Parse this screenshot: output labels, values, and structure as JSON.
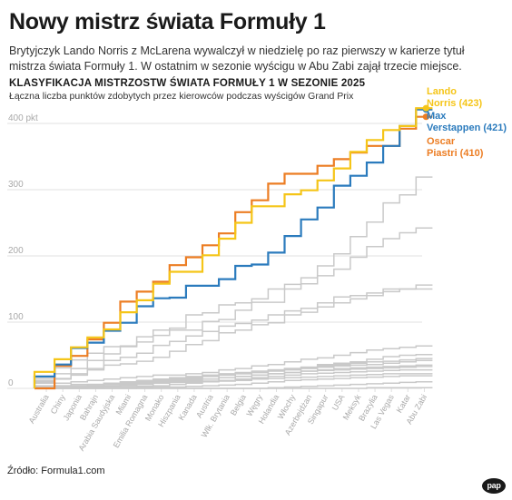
{
  "header": {
    "title": "Nowy mistrz świata Formuły 1",
    "lead": "Brytyjczyk Lando Norris z McLarena wywalczył w niedzielę po raz pierwszy w karierze tytuł mistrza świata Formuły 1. W ostatnim w sezonie wyścigu w Abu Zabi zajął trzecie miejsce."
  },
  "footer": {
    "source": "Źródło: Formula1.com",
    "logo": "pap"
  },
  "colors": {
    "norris": "#f5c518",
    "verstappen": "#2b7bbd",
    "piastri": "#ec7d23",
    "others": "#c9c9c9",
    "grid": "#d7d7d7",
    "axis_text": "#a9a9a9"
  },
  "chart_data": {
    "type": "line",
    "step": true,
    "title": "KLASYFIKACJA MISTRZOSTW ŚWIATA FORMUŁY 1 W SEZONIE 2025",
    "subtitle": "Łączna liczba punktów zdobytych przez kierowców podczas wyścigów Grand Prix",
    "xlabel": "",
    "ylabel": "",
    "ylim": [
      0,
      400
    ],
    "yticks": [
      0,
      100,
      200,
      300,
      400
    ],
    "ytick_labels": [
      "0",
      "100",
      "200",
      "300",
      "400 pkt"
    ],
    "grid": true,
    "legend": "end-labels right",
    "categories": [
      "Australia",
      "Chiny",
      "Japonia",
      "Bahrajn",
      "Arabia Saudyjska",
      "Miami",
      "Emilia Romagna",
      "Monako",
      "Hiszpania",
      "Kanada",
      "Austria",
      "Wlk. Brytania",
      "Belgia",
      "Węgry",
      "Holandia",
      "Włochy",
      "Azerbejdżan",
      "Singapur",
      "USA",
      "Meksyk",
      "Brazylia",
      "Las Vegas",
      "Katar",
      "Abu Zabi"
    ],
    "series": [
      {
        "name": "Lando Norris (423)",
        "highlight": true,
        "color": "#f5c518",
        "values": [
          25,
          44,
          62,
          77,
          89,
          115,
          133,
          158,
          176,
          176,
          201,
          226,
          250,
          275,
          275,
          293,
          299,
          314,
          332,
          357,
          375,
          390,
          396,
          423
        ]
      },
      {
        "name": "Max Verstappen (421)",
        "highlight": true,
        "color": "#2b7bbd",
        "values": [
          18,
          36,
          61,
          69,
          87,
          99,
          124,
          136,
          137,
          155,
          155,
          165,
          185,
          187,
          205,
          230,
          255,
          273,
          306,
          321,
          341,
          366,
          396,
          421
        ]
      },
      {
        "name": "Oscar Piastri (410)",
        "highlight": true,
        "color": "#ec7d23",
        "values": [
          0,
          34,
          49,
          74,
          99,
          131,
          146,
          161,
          186,
          198,
          216,
          234,
          266,
          284,
          309,
          324,
          324,
          336,
          346,
          356,
          366,
          366,
          392,
          410
        ]
      },
      {
        "name": "",
        "highlight": false,
        "values": [
          15,
          31,
          43,
          53,
          63,
          63,
          78,
          88,
          91,
          111,
          114,
          126,
          129,
          135,
          150,
          157,
          167,
          185,
          203,
          229,
          251,
          280,
          292,
          319
        ]
      },
      {
        "name": "",
        "highlight": false,
        "values": [
          12,
          22,
          30,
          42,
          52,
          64,
          70,
          80,
          88,
          88,
          101,
          104,
          118,
          130,
          130,
          150,
          158,
          170,
          180,
          198,
          214,
          226,
          235,
          242
        ]
      },
      {
        "name": "",
        "highlight": false,
        "values": [
          8,
          14,
          22,
          30,
          42,
          47,
          53,
          65,
          71,
          79,
          86,
          94,
          98,
          103,
          111,
          117,
          121,
          129,
          138,
          140,
          144,
          150,
          150,
          156
        ]
      },
      {
        "name": "",
        "highlight": false,
        "values": [
          10,
          15,
          20,
          28,
          35,
          37,
          41,
          47,
          56,
          66,
          72,
          84,
          88,
          96,
          99,
          111,
          115,
          123,
          129,
          135,
          140,
          146,
          150,
          150
        ]
      },
      {
        "name": "",
        "highlight": false,
        "values": [
          4,
          8,
          10,
          12,
          14,
          16,
          18,
          20,
          20,
          22,
          24,
          28,
          30,
          34,
          36,
          40,
          44,
          46,
          50,
          54,
          58,
          60,
          62,
          64
        ]
      },
      {
        "name": "",
        "highlight": false,
        "values": [
          0,
          4,
          4,
          6,
          8,
          10,
          12,
          12,
          14,
          16,
          18,
          20,
          22,
          24,
          28,
          30,
          32,
          36,
          38,
          40,
          44,
          48,
          50,
          51
        ]
      },
      {
        "name": "",
        "highlight": false,
        "values": [
          2,
          4,
          6,
          6,
          8,
          10,
          12,
          14,
          16,
          18,
          20,
          22,
          24,
          26,
          28,
          30,
          32,
          34,
          36,
          38,
          40,
          41,
          43,
          45
        ]
      },
      {
        "name": "",
        "highlight": false,
        "values": [
          0,
          0,
          2,
          4,
          6,
          8,
          10,
          12,
          14,
          16,
          18,
          20,
          22,
          24,
          26,
          28,
          30,
          32,
          34,
          35,
          36,
          38,
          40,
          42
        ]
      },
      {
        "name": "",
        "highlight": false,
        "values": [
          0,
          2,
          2,
          4,
          4,
          6,
          8,
          10,
          12,
          14,
          14,
          16,
          18,
          20,
          22,
          24,
          26,
          28,
          30,
          31,
          32,
          33,
          34,
          35
        ]
      },
      {
        "name": "",
        "highlight": false,
        "values": [
          0,
          0,
          1,
          2,
          3,
          4,
          6,
          8,
          10,
          12,
          14,
          16,
          18,
          20,
          22,
          24,
          26,
          27,
          28,
          29,
          30,
          31,
          32,
          33
        ]
      },
      {
        "name": "",
        "highlight": false,
        "values": [
          0,
          1,
          2,
          3,
          4,
          5,
          6,
          8,
          9,
          10,
          11,
          12,
          14,
          16,
          18,
          20,
          22,
          23,
          24,
          25,
          26,
          27,
          28,
          28
        ]
      },
      {
        "name": "",
        "highlight": false,
        "values": [
          0,
          0,
          0,
          1,
          2,
          2,
          3,
          4,
          6,
          8,
          10,
          11,
          12,
          14,
          15,
          16,
          17,
          18,
          19,
          20,
          21,
          22,
          22,
          22
        ]
      },
      {
        "name": "",
        "highlight": false,
        "values": [
          0,
          0,
          0,
          0,
          0,
          0,
          1,
          2,
          2,
          3,
          4,
          5,
          6,
          8,
          10,
          12,
          13,
          14,
          15,
          16,
          17,
          18,
          19,
          19
        ]
      },
      {
        "name": "",
        "highlight": false,
        "values": [
          0,
          0,
          0,
          0,
          0,
          0,
          0,
          0,
          0,
          0,
          0,
          0,
          0,
          0,
          1,
          2,
          3,
          4,
          5,
          6,
          7,
          8,
          9,
          10
        ]
      },
      {
        "name": "",
        "highlight": false,
        "values": [
          0,
          0,
          0,
          0,
          0,
          0,
          0,
          0,
          0,
          0,
          0,
          0,
          0,
          0,
          0,
          0,
          0,
          0,
          0,
          0,
          1,
          1,
          1,
          1
        ]
      }
    ],
    "end_labels": [
      {
        "line1": "Lando",
        "line2": "Norris (423)",
        "color": "#f5c518"
      },
      {
        "line1": "Max",
        "line2": "Verstappen (421)",
        "color": "#2b7bbd"
      },
      {
        "line1": "Oscar",
        "line2": "Piastri (410)",
        "color": "#ec7d23"
      }
    ]
  }
}
